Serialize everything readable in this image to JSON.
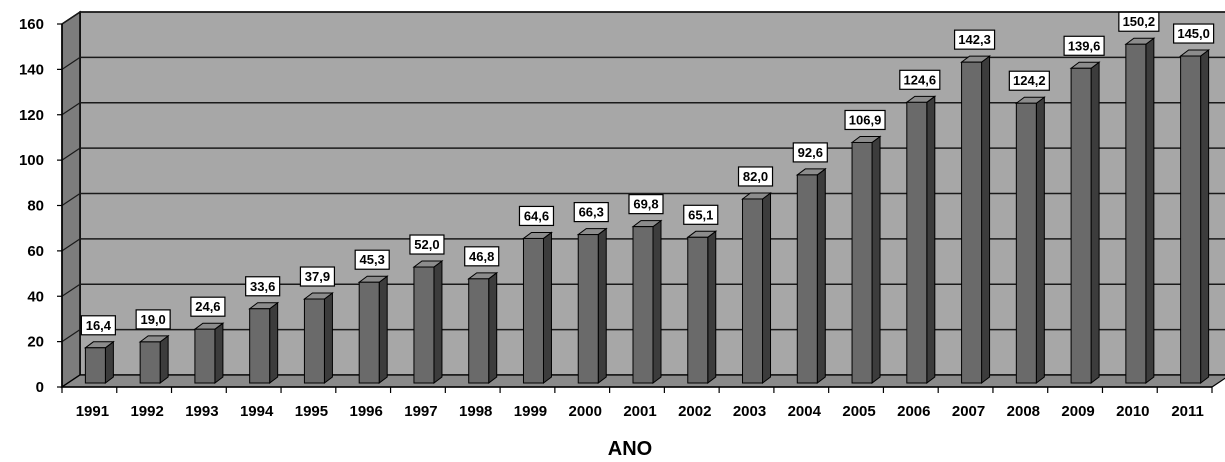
{
  "chart_data": {
    "type": "bar",
    "categories": [
      "1991",
      "1992",
      "1993",
      "1994",
      "1995",
      "1996",
      "1997",
      "1998",
      "1999",
      "2000",
      "2001",
      "2002",
      "2003",
      "2004",
      "2005",
      "2006",
      "2007",
      "2008",
      "2009",
      "2010",
      "2011"
    ],
    "values": [
      16.4,
      19.0,
      24.6,
      33.6,
      37.9,
      45.3,
      52.0,
      46.8,
      64.6,
      66.3,
      69.8,
      65.1,
      82.0,
      92.6,
      106.9,
      124.6,
      142.3,
      124.2,
      139.6,
      150.2,
      145.0
    ],
    "data_labels": [
      "16,4",
      "19,0",
      "24,6",
      "33,6",
      "37,9",
      "45,3",
      "52,0",
      "46,8",
      "64,6",
      "66,3",
      "69,8",
      "65,1",
      "82,0",
      "92,6",
      "106,9",
      "124,6",
      "142,3",
      "124,2",
      "139,6",
      "150,2",
      "145,0"
    ],
    "title": "",
    "xlabel": "ANO",
    "ylabel": "",
    "ylim": [
      0,
      160
    ],
    "yticks": [
      "0",
      "20",
      "40",
      "60",
      "80",
      "100",
      "120",
      "140",
      "160"
    ],
    "grid": true,
    "legend": "none",
    "style": "3d-column",
    "colors": {
      "bar_front": "#6a6a6a",
      "bar_side": "#3c3c3c",
      "bar_top": "#8c8c8c",
      "plot_wall": "#a7a7a7",
      "side_wall": "#7d7d7d",
      "floor": "#8a8a8a",
      "gridline": "#1a1a1a"
    }
  }
}
